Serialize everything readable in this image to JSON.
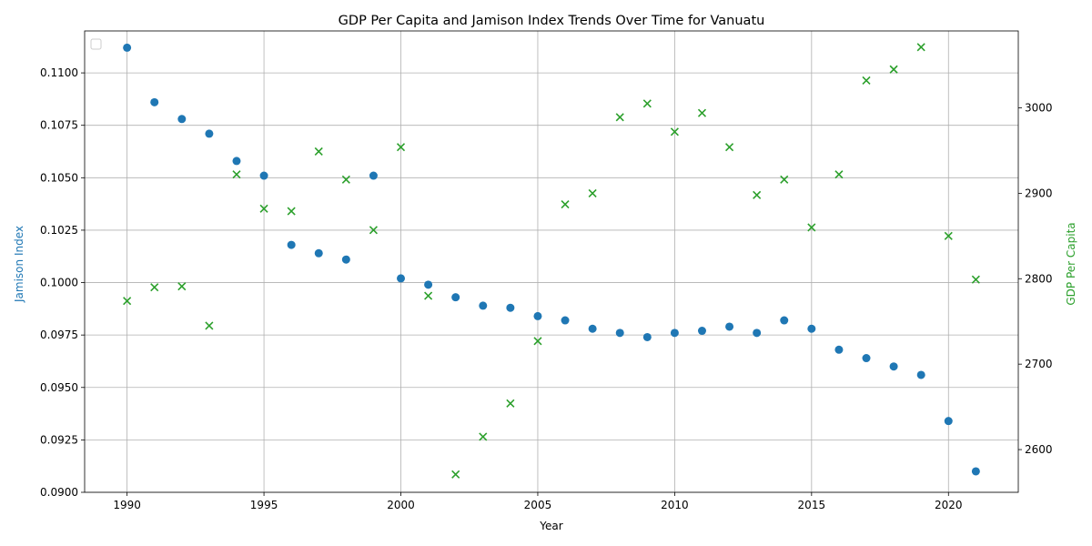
{
  "chart_data": {
    "type": "scatter",
    "title": "GDP Per Capita and Jamison Index Trends Over Time for Vanuatu",
    "xlabel": "Year",
    "ylabel_left": "Jamison Index",
    "ylabel_right": "GDP Per Capita",
    "xlim": [
      1988.45,
      1992.55
    ],
    "x_range": [
      1988.45,
      2022.55
    ],
    "ylim_left": [
      0.09,
      0.112
    ],
    "ylim_right": [
      2550,
      3090
    ],
    "x_ticks": [
      "1990",
      "1995",
      "2000",
      "2005",
      "2010",
      "2015",
      "2020"
    ],
    "y_ticks_left": [
      "0.0900",
      "0.0925",
      "0.0950",
      "0.0975",
      "0.1000",
      "0.1025",
      "0.1050",
      "0.1075",
      "0.1100"
    ],
    "y_ticks_right": [
      "2600",
      "2700",
      "2800",
      "2900",
      "3000"
    ],
    "grid": true,
    "legend": "upper-left (empty)",
    "colors": {
      "left": "#1f77b4",
      "right": "#2ca02c"
    },
    "x": [
      1990,
      1991,
      1992,
      1993,
      1994,
      1995,
      1996,
      1997,
      1998,
      1999,
      2000,
      2001,
      2002,
      2003,
      2004,
      2005,
      2006,
      2007,
      2008,
      2009,
      2010,
      2011,
      2012,
      2013,
      2014,
      2015,
      2016,
      2017,
      2018,
      2019,
      2020,
      2021
    ],
    "series": [
      {
        "axis": "left",
        "marker": "circle",
        "values": [
          0.1112,
          0.1086,
          0.1078,
          0.1071,
          0.1058,
          0.1051,
          0.1018,
          0.1014,
          0.1011,
          0.1051,
          0.1002,
          0.0999,
          0.0993,
          0.0989,
          0.0988,
          0.0984,
          0.0982,
          0.0978,
          0.0976,
          0.0974,
          0.0976,
          0.0977,
          0.0979,
          0.0976,
          0.0982,
          0.0978,
          0.0968,
          0.0964,
          0.096,
          0.0956,
          0.0934,
          0.091
        ]
      },
      {
        "axis": "right",
        "marker": "x",
        "values": [
          2774,
          2790,
          2791,
          2745,
          2922,
          2882,
          2879,
          2949,
          2916,
          2857,
          2954,
          2780,
          2571,
          2615,
          2654,
          2727,
          2887,
          2900,
          2989,
          3005,
          2972,
          2994,
          2954,
          2898,
          2916,
          2860,
          2922,
          3032,
          3045,
          3071,
          2850,
          2799
        ]
      }
    ]
  }
}
